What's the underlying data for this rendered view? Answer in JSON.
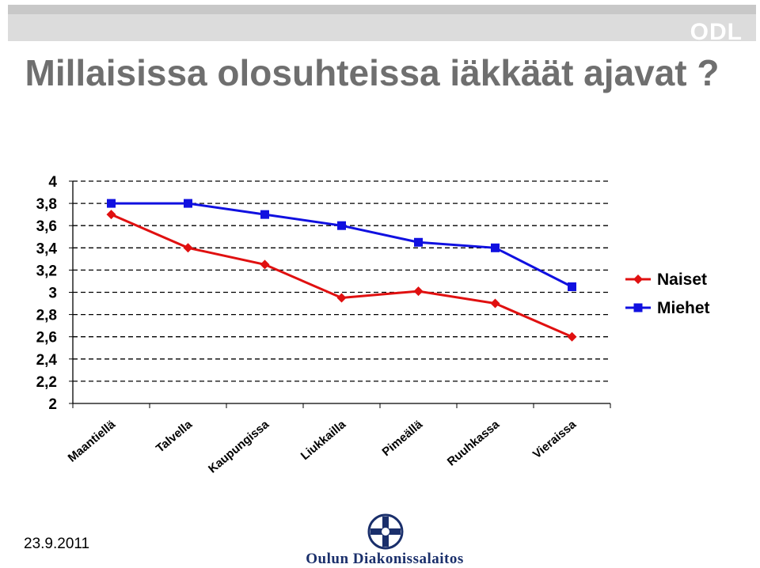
{
  "header": {
    "logo_text": "ODL"
  },
  "title": "Millaisissa olosuhteissa iäkkäät ajavat ?",
  "footer": {
    "date": "23.9.2011",
    "organization": "Oulun Diakonissalaitos"
  },
  "colors": {
    "naiset": "#e01010",
    "miehet": "#1010e0",
    "title": "#6f6f6f",
    "org": "#1a2f6b"
  },
  "chart_data": {
    "type": "line",
    "categories": [
      "Maantiellä",
      "Talvella",
      "Kaupungissa",
      "Liukkailla",
      "Pimeällä",
      "Ruuhkassa",
      "Vieraissa"
    ],
    "series": [
      {
        "name": "Naiset",
        "marker": "diamond",
        "color": "#e01010",
        "values": [
          3.7,
          3.4,
          3.25,
          2.95,
          3.01,
          2.9,
          2.6
        ]
      },
      {
        "name": "Miehet",
        "marker": "square",
        "color": "#1010e0",
        "values": [
          3.8,
          3.8,
          3.7,
          3.6,
          3.45,
          3.4,
          3.05
        ]
      }
    ],
    "y_tick_labels": [
      "2",
      "2,2",
      "2,4",
      "2,6",
      "2,8",
      "3",
      "3,2",
      "3,4",
      "3,6",
      "3,8",
      "4"
    ],
    "ylim": [
      2,
      4
    ],
    "grid": "dashed horizontal",
    "legend_position": "right"
  }
}
